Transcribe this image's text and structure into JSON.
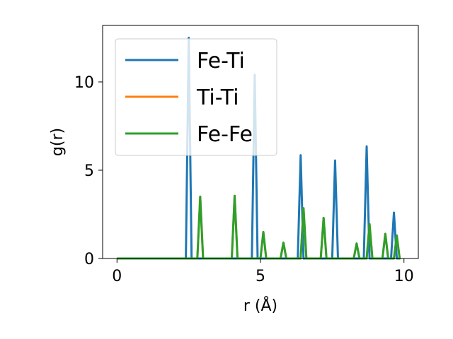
{
  "chart_data": {
    "type": "line",
    "title": "",
    "xlabel": "r (Å)",
    "ylabel": "g(r)",
    "xlim": [
      -0.5,
      10.5
    ],
    "ylim": [
      0,
      13.2
    ],
    "xticks": [
      0,
      5,
      10
    ],
    "yticks": [
      0,
      5,
      10
    ],
    "grid": false,
    "legend": {
      "placement": "upper-left"
    },
    "series": [
      {
        "name": "Fe-Ti",
        "color": "#1f77b4",
        "peaks": [
          {
            "r": 2.5,
            "g": 12.5,
            "half_width": 0.1
          },
          {
            "r": 4.8,
            "g": 10.4,
            "half_width": 0.1
          },
          {
            "r": 6.4,
            "g": 5.85,
            "half_width": 0.1
          },
          {
            "r": 7.6,
            "g": 5.55,
            "half_width": 0.1
          },
          {
            "r": 8.7,
            "g": 6.35,
            "half_width": 0.1
          },
          {
            "r": 9.65,
            "g": 2.6,
            "half_width": 0.1
          }
        ]
      },
      {
        "name": "Ti-Ti",
        "color": "#ff7f0e",
        "peaks": [
          {
            "r": 2.9,
            "g": 3.5,
            "half_width": 0.1
          },
          {
            "r": 4.1,
            "g": 3.55,
            "half_width": 0.1
          },
          {
            "r": 5.1,
            "g": 1.5,
            "half_width": 0.1
          },
          {
            "r": 5.8,
            "g": 0.9,
            "half_width": 0.1
          },
          {
            "r": 6.5,
            "g": 2.85,
            "half_width": 0.1
          },
          {
            "r": 7.2,
            "g": 2.3,
            "half_width": 0.1
          },
          {
            "r": 8.35,
            "g": 0.85,
            "half_width": 0.1
          },
          {
            "r": 8.8,
            "g": 1.95,
            "half_width": 0.1
          },
          {
            "r": 9.35,
            "g": 1.4,
            "half_width": 0.1
          },
          {
            "r": 9.75,
            "g": 1.3,
            "half_width": 0.1
          }
        ]
      },
      {
        "name": "Fe-Fe",
        "color": "#2ca02c",
        "peaks": [
          {
            "r": 2.9,
            "g": 3.5,
            "half_width": 0.1
          },
          {
            "r": 4.1,
            "g": 3.55,
            "half_width": 0.1
          },
          {
            "r": 5.1,
            "g": 1.5,
            "half_width": 0.1
          },
          {
            "r": 5.8,
            "g": 0.9,
            "half_width": 0.1
          },
          {
            "r": 6.5,
            "g": 2.85,
            "half_width": 0.1
          },
          {
            "r": 7.2,
            "g": 2.3,
            "half_width": 0.1
          },
          {
            "r": 8.35,
            "g": 0.85,
            "half_width": 0.1
          },
          {
            "r": 8.8,
            "g": 1.95,
            "half_width": 0.1
          },
          {
            "r": 9.35,
            "g": 1.4,
            "half_width": 0.1
          },
          {
            "r": 9.75,
            "g": 1.3,
            "half_width": 0.1
          }
        ]
      }
    ],
    "x_start": 0,
    "x_end": 9.8
  }
}
